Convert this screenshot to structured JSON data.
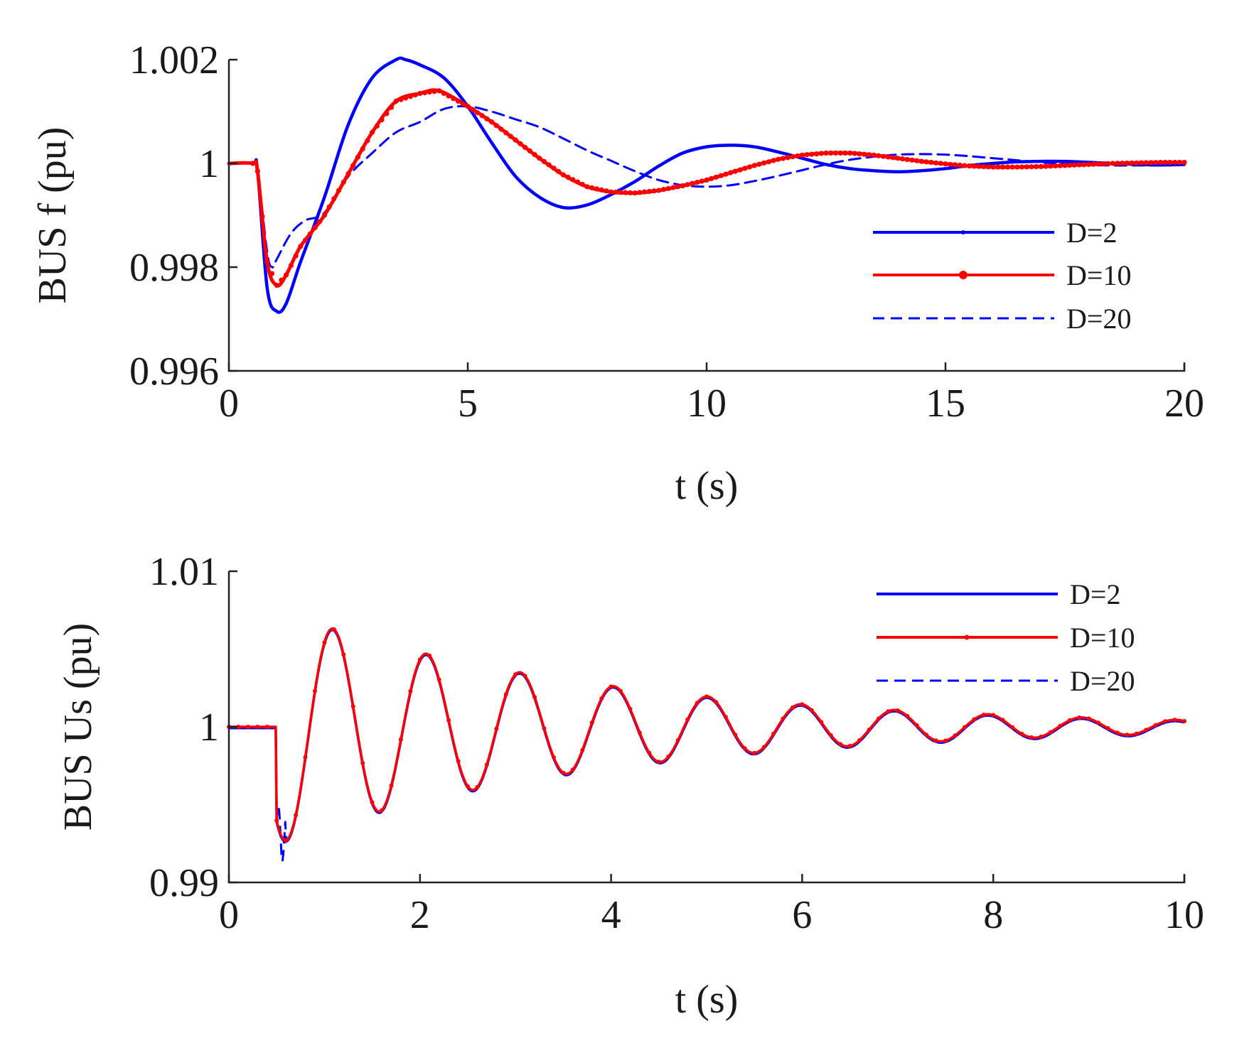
{
  "chart_data": [
    {
      "type": "line",
      "xlabel": "t (s)",
      "ylabel": "BUS f  (pu)",
      "xlim": [
        0,
        20
      ],
      "ylim": [
        0.996,
        1.002
      ],
      "xticks": [
        0,
        5,
        10,
        15,
        20
      ],
      "xtick_labels": [
        "0",
        "5",
        "10",
        "15",
        "20"
      ],
      "yticks": [
        0.996,
        0.998,
        1.0,
        1.002
      ],
      "ytick_labels": [
        "0.996",
        "0.998",
        "1",
        "1.002"
      ],
      "legend_position": "right",
      "grid": false,
      "series": [
        {
          "name": "D=2",
          "color": "#0000ff",
          "style": "solid-dot",
          "x": [
            0,
            0.5,
            0.6,
            0.8,
            1.0,
            1.2,
            1.5,
            2.0,
            2.5,
            3.0,
            3.5,
            3.7,
            4.0,
            4.5,
            5.0,
            5.5,
            6.0,
            6.5,
            7.0,
            7.5,
            8.0,
            8.5,
            9.0,
            9.5,
            10.0,
            10.5,
            11.0,
            11.5,
            12.0,
            12.5,
            13.0,
            13.5,
            14.0,
            14.5,
            15.0,
            15.5,
            16.0,
            16.5,
            17.0,
            17.5,
            18.0,
            18.5,
            19.0,
            19.5,
            20.0
          ],
          "y": [
            1.0,
            1.0,
            0.99985,
            0.9976,
            0.99715,
            0.9973,
            0.9981,
            0.99935,
            1.00075,
            1.00165,
            1.002,
            1.002,
            1.0019,
            1.00165,
            1.0011,
            1.0004,
            0.99975,
            0.99935,
            0.99915,
            0.9992,
            0.9994,
            0.99965,
            0.99995,
            1.0002,
            1.00032,
            1.00035,
            1.00032,
            1.00022,
            1.0001,
            0.99998,
            0.9999,
            0.99986,
            0.99984,
            0.99986,
            0.9999,
            0.99996,
            1.0,
            1.00003,
            1.00004,
            1.00004,
            1.00002,
            1.0,
            0.99998,
            0.99997,
            0.99998
          ]
        },
        {
          "name": "D=10",
          "color": "#ff0000",
          "style": "solid-dot",
          "x": [
            0,
            0.5,
            0.6,
            0.8,
            1.0,
            1.2,
            1.5,
            2.0,
            2.5,
            3.0,
            3.5,
            4.0,
            4.4,
            5.0,
            5.5,
            6.0,
            6.5,
            7.0,
            7.5,
            8.0,
            8.5,
            9.0,
            9.5,
            10.0,
            10.5,
            11.0,
            11.5,
            12.0,
            12.5,
            13.0,
            13.5,
            14.0,
            14.5,
            15.0,
            15.5,
            16.0,
            16.5,
            17.0,
            17.5,
            18.0,
            18.5,
            19.0,
            19.5,
            20.0
          ],
          "y": [
            1.0,
            1.0,
            0.99985,
            0.9981,
            0.99765,
            0.99785,
            0.9984,
            0.999,
            0.9998,
            1.0006,
            1.0012,
            1.00135,
            1.0014,
            1.0011,
            1.0008,
            1.00045,
            1.0001,
            0.99978,
            0.99955,
            0.99945,
            0.99943,
            0.99948,
            0.99957,
            0.99968,
            0.99982,
            0.99996,
            1.00008,
            1.00016,
            1.0002,
            1.0002,
            1.00016,
            1.0001,
            1.00004,
            0.99999,
            0.99995,
            0.99993,
            0.99993,
            0.99994,
            0.99996,
            0.99998,
            1.0,
            1.00001,
            1.00002,
            1.00002
          ]
        },
        {
          "name": "D=20",
          "color": "#0000ff",
          "style": "dashed",
          "x": [
            0,
            0.5,
            0.6,
            0.8,
            0.9,
            1.0,
            1.3,
            1.6,
            2.0,
            2.5,
            3.0,
            3.5,
            4.0,
            4.5,
            5.0,
            5.5,
            6.0,
            6.5,
            7.0,
            7.5,
            8.0,
            8.5,
            9.0,
            9.5,
            10.0,
            10.5,
            11.0,
            11.5,
            12.0,
            12.5,
            13.0,
            13.5,
            14.0,
            14.5,
            15.0,
            15.5,
            16.0,
            16.5,
            17.0,
            17.5,
            18.0,
            18.5,
            19.0,
            19.5,
            20.0
          ],
          "y": [
            1.0,
            1.0,
            0.99985,
            0.9983,
            0.998,
            0.99815,
            0.99865,
            0.9989,
            0.99905,
            0.99975,
            1.0002,
            1.0006,
            1.0008,
            1.00105,
            1.0011,
            1.001,
            1.00085,
            1.0007,
            1.00048,
            1.00025,
            1.00005,
            0.99985,
            0.99968,
            0.99958,
            0.99955,
            0.99958,
            0.99966,
            0.99976,
            0.99987,
            0.99998,
            1.00007,
            1.00013,
            1.00017,
            1.00018,
            1.00017,
            1.00014,
            1.0001,
            1.00006,
            1.00002,
            0.99999,
            0.99997,
            0.99996,
            0.99996,
            0.99996,
            0.99997
          ]
        }
      ]
    },
    {
      "type": "line",
      "xlabel": "t (s)",
      "ylabel": "BUS Us (pu)",
      "xlim": [
        0,
        10
      ],
      "ylim": [
        0.99,
        1.01
      ],
      "xticks": [
        0,
        2,
        4,
        6,
        8,
        10
      ],
      "xtick_labels": [
        "0",
        "2",
        "4",
        "6",
        "8",
        "10"
      ],
      "yticks": [
        0.99,
        1.0,
        1.01
      ],
      "ytick_labels": [
        "0.99",
        "1",
        "1.01"
      ],
      "legend_position": "top-right",
      "grid": false,
      "response_model": {
        "fault_time": 0.5,
        "initial": 1.0,
        "amplitude": 0.0073,
        "period": 0.98,
        "first_trough_time": 0.6,
        "decay_rate": 0.3
      },
      "series": [
        {
          "name": "D=2",
          "color": "#0000ff",
          "style": "solid"
        },
        {
          "name": "D=10",
          "color": "#ff0000",
          "style": "solid-dot"
        },
        {
          "name": "D=20",
          "color": "#0000ff",
          "style": "dashed"
        }
      ]
    }
  ]
}
